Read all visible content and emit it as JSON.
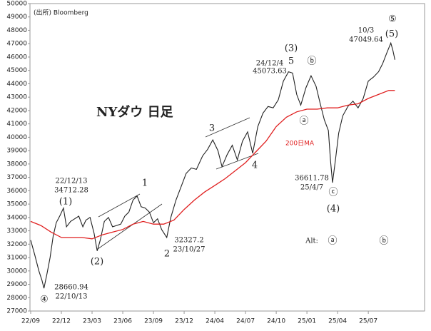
{
  "chart_data": {
    "type": "line",
    "xlim": [
      0,
      38.5
    ],
    "xticks": [
      {
        "value": 0,
        "label": "22/09"
      },
      {
        "value": 3,
        "label": "22/12"
      },
      {
        "value": 6,
        "label": "23/03"
      },
      {
        "value": 9,
        "label": "23/06"
      },
      {
        "value": 12,
        "label": "23/09"
      },
      {
        "value": 15,
        "label": "23/12"
      },
      {
        "value": 18,
        "label": "24/04"
      },
      {
        "value": 21,
        "label": "24/07"
      },
      {
        "value": 24,
        "label": "24/10"
      },
      {
        "value": 27,
        "label": "25/01"
      },
      {
        "value": 30,
        "label": "25/04"
      },
      {
        "value": 33,
        "label": "25/07"
      }
    ],
    "ylim": [
      27000,
      50000
    ],
    "yticks": [
      27000,
      28000,
      29000,
      30000,
      31000,
      32000,
      33000,
      34000,
      35000,
      36000,
      37000,
      38000,
      39000,
      40000,
      41000,
      42000,
      43000,
      44000,
      45000,
      46000,
      47000,
      48000,
      49000,
      50000
    ],
    "series": [
      {
        "color": "#222222",
        "x": [
          0,
          0.4,
          0.8,
          1.1,
          1.3,
          1.6,
          1.9,
          2.2,
          2.5,
          2.9,
          3.2,
          3.5,
          3.9,
          4.3,
          4.7,
          5.1,
          5.4,
          5.8,
          6.2,
          6.5,
          6.8,
          7.2,
          7.6,
          8.0,
          8.4,
          8.8,
          9.2,
          9.6,
          10.0,
          10.4,
          10.8,
          11.2,
          11.6,
          12.0,
          12.4,
          12.8,
          13.3,
          13.7,
          14.2,
          14.7,
          15.2,
          15.7,
          16.2,
          16.8,
          17.3,
          17.8,
          18.3,
          18.7,
          19.2,
          19.7,
          20.2,
          20.7,
          21.2,
          21.7,
          22.2,
          22.7,
          23.2,
          23.7,
          24.2,
          24.7,
          25.2,
          25.6,
          26.0,
          26.4,
          26.9,
          27.4,
          27.9,
          28.3,
          28.7,
          29.1,
          29.3,
          29.5,
          29.8,
          30.1,
          30.5,
          31.0,
          31.5,
          32.0,
          32.5,
          33.0,
          33.5,
          34.0,
          34.4,
          34.8,
          35.2,
          35.4,
          35.6
        ],
        "values": [
          32300,
          31200,
          30000,
          29300,
          28700,
          29800,
          31000,
          32600,
          33600,
          34200,
          34700,
          33300,
          33700,
          33900,
          34100,
          33300,
          33800,
          34000,
          32800,
          31500,
          32300,
          33700,
          34000,
          33300,
          33400,
          33500,
          34100,
          34400,
          35300,
          35600,
          34800,
          34700,
          34400,
          33600,
          33900,
          33100,
          32500,
          34000,
          35300,
          36300,
          37300,
          37700,
          37600,
          38600,
          39100,
          39800,
          39000,
          37800,
          38700,
          39400,
          38300,
          39700,
          40400,
          38800,
          40800,
          41800,
          42300,
          42200,
          42800,
          44200,
          44900,
          44800,
          43200,
          42400,
          43700,
          44600,
          43800,
          42500,
          41300,
          40500,
          38300,
          36600,
          38400,
          40300,
          41600,
          42300,
          42700,
          42200,
          42900,
          44200,
          44500,
          44900,
          45500,
          46300,
          47050,
          46500,
          45800
        ]
      },
      {
        "color": "#e02020",
        "x": [
          0,
          1,
          2,
          3,
          4,
          5,
          6,
          7,
          8,
          9,
          10,
          11,
          12,
          13,
          14,
          15,
          16,
          17,
          18,
          19,
          20,
          21,
          22,
          23,
          24,
          25,
          26,
          27,
          28,
          29,
          30,
          31,
          32,
          33,
          34,
          35,
          35.6
        ],
        "values": [
          33700,
          33400,
          32900,
          32500,
          32500,
          32500,
          32400,
          32700,
          32900,
          33100,
          33500,
          33700,
          33500,
          33500,
          33800,
          34600,
          35300,
          35900,
          36400,
          36900,
          37500,
          38100,
          38900,
          39700,
          40800,
          41500,
          41900,
          42100,
          42100,
          42200,
          42200,
          42400,
          42500,
          42900,
          43200,
          43500,
          43500
        ]
      }
    ],
    "annotations": [
      "(出所) Bloomberg",
      "NYダウ 日足",
      "22/12/13",
      "34712.28",
      "(1)",
      "1",
      "(2)",
      "2",
      "32327.2",
      "23/10/27",
      "28660.94",
      "22/10/13",
      "④",
      "3",
      "4",
      "(3)",
      "5",
      "24/12/4",
      "45073.63",
      "ⓑ",
      "ⓐ",
      "200日MA",
      "36611.78",
      "25/4/7",
      "ⓒ",
      "(4)",
      "Alt:",
      "ⓐ",
      "ⓑ",
      "10/3",
      "47049.64",
      "⑤",
      "(5)"
    ]
  }
}
